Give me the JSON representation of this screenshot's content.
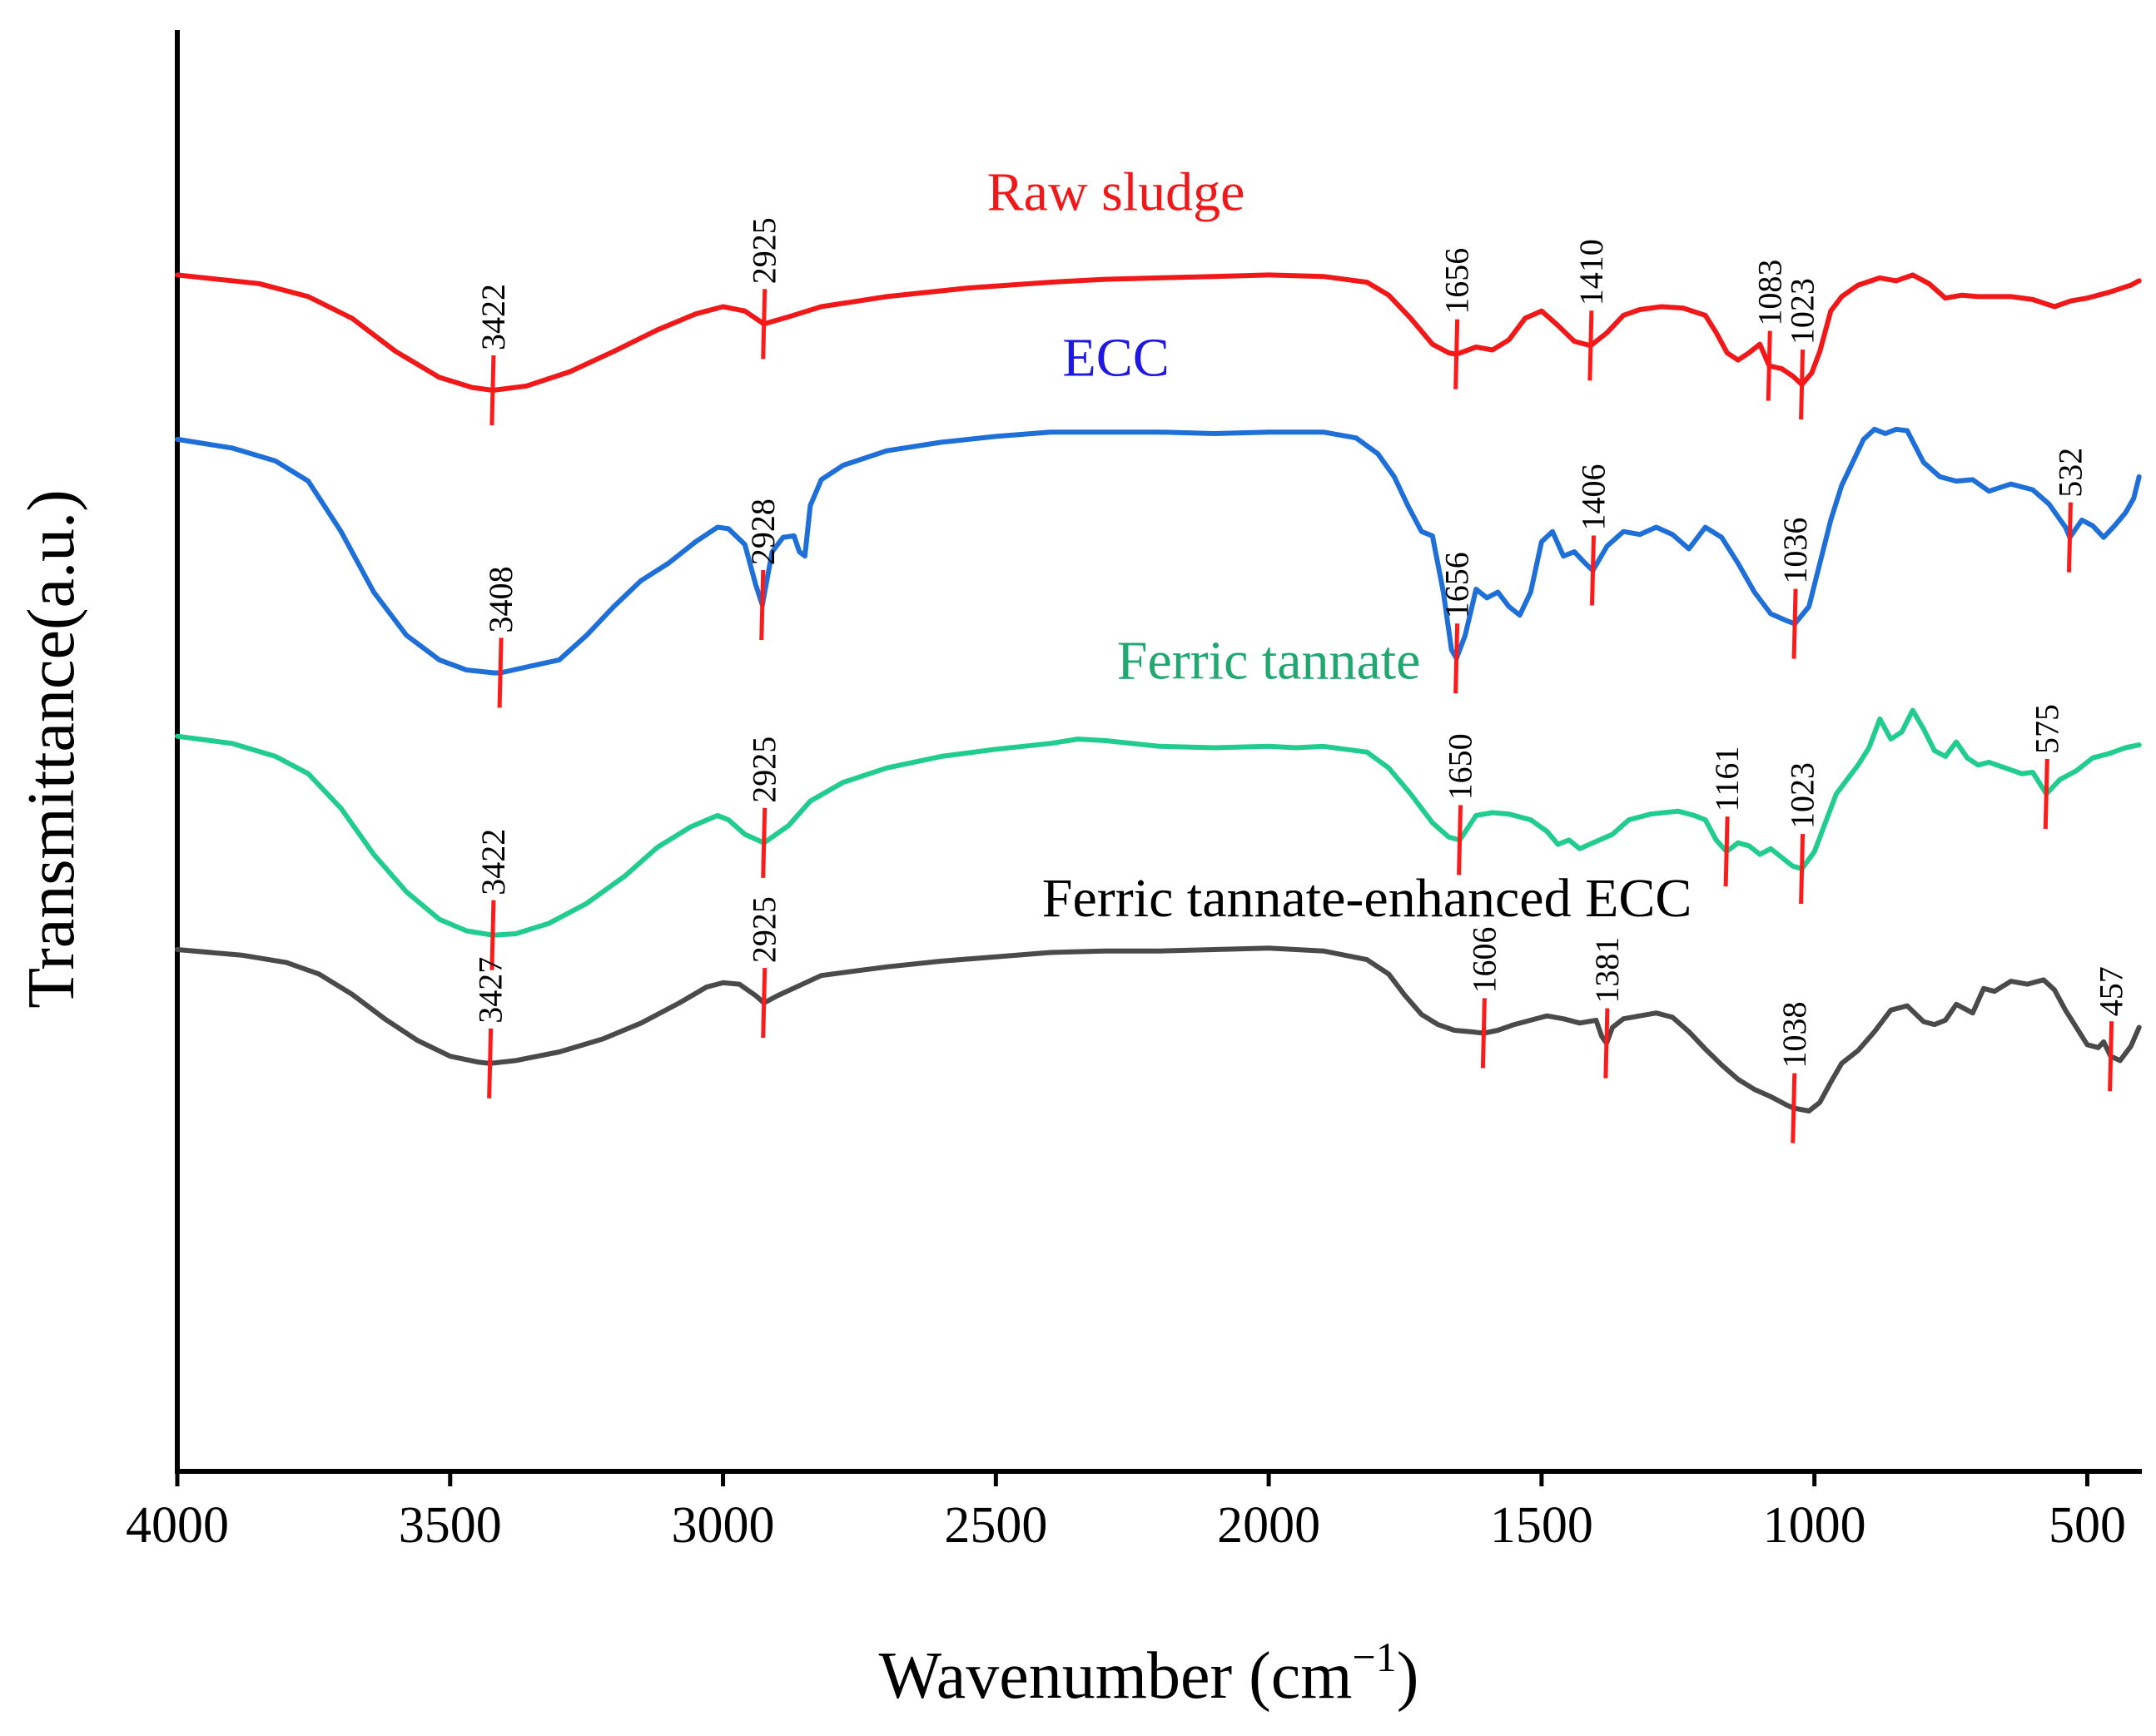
{
  "chart_data": {
    "type": "line",
    "title": "",
    "xlabel": "Wavenumber (cm",
    "xlabel_sup": "−1",
    "xlabel_close": ")",
    "ylabel": "Transmittance(a.u.)",
    "xlim": [
      4000,
      400
    ],
    "ylim": [
      0,
      100
    ],
    "x_ticks": [
      4000,
      3500,
      3000,
      2500,
      2000,
      1500,
      1000,
      500
    ],
    "x_tick_labels": [
      "4000",
      "3500",
      "3000",
      "2500",
      "2000",
      "1500",
      "1000",
      "500"
    ],
    "y_ticks_shown": false,
    "series": [
      {
        "name": "Raw sludge",
        "color": "#f01818",
        "x": [
          4000,
          3850,
          3760,
          3680,
          3600,
          3520,
          3460,
          3422,
          3360,
          3280,
          3200,
          3120,
          3050,
          3000,
          2960,
          2925,
          2880,
          2820,
          2700,
          2550,
          2400,
          2300,
          2200,
          2100,
          2000,
          1900,
          1820,
          1780,
          1740,
          1700,
          1670,
          1656,
          1620,
          1590,
          1560,
          1530,
          1500,
          1470,
          1440,
          1420,
          1410,
          1380,
          1350,
          1320,
          1280,
          1240,
          1200,
          1180,
          1160,
          1140,
          1120,
          1100,
          1083,
          1060,
          1040,
          1023,
          1005,
          990,
          970,
          950,
          920,
          880,
          850,
          820,
          790,
          760,
          730,
          700,
          670,
          640,
          600,
          560,
          530,
          500,
          460,
          420,
          405
        ],
        "y": [
          83.0,
          82.4,
          81.5,
          80.0,
          77.7,
          75.9,
          75.2,
          75.0,
          75.3,
          76.3,
          77.7,
          79.2,
          80.3,
          80.8,
          80.5,
          79.6,
          80.1,
          80.8,
          81.5,
          82.1,
          82.5,
          82.7,
          82.8,
          82.9,
          83.0,
          82.9,
          82.5,
          81.6,
          80.0,
          78.2,
          77.6,
          77.5,
          78.0,
          77.8,
          78.5,
          80.0,
          80.5,
          79.5,
          78.4,
          78.2,
          78.1,
          79.0,
          80.2,
          80.6,
          80.8,
          80.7,
          80.2,
          79.0,
          77.6,
          77.1,
          77.6,
          78.2,
          76.7,
          76.5,
          76.0,
          75.4,
          76.2,
          77.7,
          80.5,
          81.5,
          82.3,
          82.8,
          82.6,
          83.0,
          82.4,
          81.4,
          81.6,
          81.5,
          81.5,
          81.5,
          81.3,
          80.8,
          81.2,
          81.4,
          81.8,
          82.3,
          82.6
        ]
      },
      {
        "name": "ECC",
        "color": "#1e6fd8",
        "x": [
          4000,
          3900,
          3820,
          3760,
          3700,
          3640,
          3580,
          3520,
          3470,
          3420,
          3408,
          3360,
          3300,
          3250,
          3200,
          3150,
          3100,
          3050,
          3010,
          2990,
          2960,
          2940,
          2928,
          2910,
          2890,
          2870,
          2860,
          2850,
          2840,
          2820,
          2780,
          2700,
          2600,
          2500,
          2400,
          2300,
          2200,
          2100,
          2000,
          1900,
          1840,
          1800,
          1770,
          1745,
          1720,
          1700,
          1680,
          1665,
          1656,
          1640,
          1620,
          1600,
          1580,
          1560,
          1540,
          1520,
          1500,
          1480,
          1460,
          1440,
          1420,
          1406,
          1380,
          1350,
          1320,
          1290,
          1260,
          1230,
          1200,
          1170,
          1140,
          1110,
          1080,
          1050,
          1036,
          1010,
          990,
          970,
          950,
          930,
          910,
          890,
          870,
          850,
          830,
          800,
          770,
          740,
          710,
          680,
          640,
          600,
          570,
          540,
          532,
          510,
          490,
          470,
          450,
          430,
          415,
          405
        ],
        "y": [
          71.6,
          71.0,
          70.1,
          68.7,
          65.2,
          61.0,
          58.0,
          56.3,
          55.6,
          55.4,
          55.4,
          55.8,
          56.3,
          58.0,
          60.0,
          61.8,
          63.0,
          64.5,
          65.5,
          65.4,
          64.3,
          61.5,
          60.1,
          63.8,
          64.8,
          64.9,
          63.8,
          63.5,
          67.0,
          68.8,
          69.8,
          70.8,
          71.4,
          71.8,
          72.1,
          72.1,
          72.1,
          72.0,
          72.1,
          72.1,
          71.7,
          70.6,
          69.0,
          67.0,
          65.2,
          64.9,
          61.0,
          57.0,
          56.4,
          58.0,
          61.2,
          60.6,
          61.0,
          60.0,
          59.4,
          61.0,
          64.5,
          65.2,
          63.5,
          63.8,
          63.0,
          62.5,
          64.2,
          65.2,
          65.0,
          65.5,
          65.0,
          64.0,
          65.5,
          64.8,
          63.0,
          61.0,
          59.5,
          59.0,
          58.8,
          60.0,
          63.0,
          66.0,
          68.4,
          70.0,
          71.6,
          72.3,
          72.0,
          72.3,
          72.2,
          70.0,
          69.0,
          68.7,
          68.8,
          68.0,
          68.5,
          68.1,
          67.1,
          65.5,
          64.8,
          66.0,
          65.6,
          64.8,
          65.6,
          66.5,
          67.5,
          69.0
        ]
      },
      {
        "name": "Ferric tannate",
        "color": "#20cc8e",
        "x": [
          4000,
          3900,
          3820,
          3760,
          3700,
          3640,
          3580,
          3520,
          3470,
          3422,
          3380,
          3320,
          3250,
          3180,
          3120,
          3060,
          3010,
          2990,
          2960,
          2925,
          2880,
          2840,
          2780,
          2700,
          2600,
          2500,
          2400,
          2350,
          2300,
          2200,
          2100,
          2000,
          1950,
          1900,
          1820,
          1780,
          1740,
          1700,
          1670,
          1650,
          1620,
          1590,
          1560,
          1520,
          1490,
          1470,
          1450,
          1430,
          1400,
          1370,
          1340,
          1300,
          1250,
          1220,
          1200,
          1180,
          1161,
          1140,
          1120,
          1100,
          1080,
          1060,
          1040,
          1023,
          1000,
          980,
          960,
          940,
          920,
          900,
          880,
          860,
          840,
          820,
          800,
          780,
          760,
          740,
          720,
          700,
          680,
          650,
          620,
          600,
          575,
          550,
          520,
          490,
          460,
          430,
          405
        ],
        "y": [
          51.0,
          50.5,
          49.6,
          48.4,
          46.0,
          42.8,
          40.2,
          38.3,
          37.5,
          37.2,
          37.3,
          38.0,
          39.4,
          41.3,
          43.3,
          44.7,
          45.5,
          45.2,
          44.2,
          43.6,
          44.8,
          46.5,
          47.8,
          48.8,
          49.6,
          50.1,
          50.5,
          50.8,
          50.7,
          50.3,
          50.2,
          50.3,
          50.2,
          50.3,
          49.9,
          48.8,
          47.0,
          45.0,
          44.0,
          43.8,
          45.5,
          45.7,
          45.6,
          45.2,
          44.4,
          43.5,
          43.8,
          43.2,
          43.7,
          44.2,
          45.2,
          45.6,
          45.8,
          45.5,
          45.2,
          43.8,
          43.0,
          43.6,
          43.4,
          42.8,
          43.2,
          42.6,
          42.0,
          41.8,
          43.0,
          45.0,
          47.0,
          48.0,
          49.0,
          50.2,
          52.2,
          50.8,
          51.3,
          52.8,
          51.5,
          50.0,
          49.6,
          50.6,
          49.5,
          49.0,
          49.2,
          48.8,
          48.4,
          48.5,
          47.0,
          48.0,
          48.6,
          49.5,
          49.8,
          50.2,
          50.4
        ]
      },
      {
        "name": "Ferric tannate-enhanced ECC",
        "color": "#4a4a4a",
        "x": [
          4000,
          3880,
          3800,
          3740,
          3680,
          3620,
          3560,
          3500,
          3450,
          3427,
          3380,
          3300,
          3220,
          3150,
          3080,
          3030,
          3000,
          2970,
          2940,
          2925,
          2900,
          2860,
          2820,
          2780,
          2700,
          2600,
          2500,
          2400,
          2300,
          2200,
          2100,
          2000,
          1900,
          1820,
          1780,
          1750,
          1720,
          1690,
          1660,
          1630,
          1606,
          1580,
          1550,
          1520,
          1490,
          1460,
          1430,
          1400,
          1390,
          1381,
          1370,
          1350,
          1320,
          1290,
          1260,
          1230,
          1200,
          1170,
          1140,
          1110,
          1080,
          1050,
          1038,
          1010,
          990,
          970,
          950,
          920,
          890,
          860,
          830,
          800,
          780,
          760,
          740,
          710,
          690,
          670,
          640,
          610,
          580,
          560,
          540,
          520,
          500,
          480,
          470,
          457,
          440,
          420,
          405
        ],
        "y": [
          36.2,
          35.8,
          35.3,
          34.5,
          33.1,
          31.4,
          29.9,
          28.8,
          28.4,
          28.3,
          28.5,
          29.1,
          30.0,
          31.1,
          32.5,
          33.6,
          33.9,
          33.8,
          33.0,
          32.5,
          33.0,
          33.7,
          34.4,
          34.6,
          35.0,
          35.4,
          35.7,
          36.0,
          36.1,
          36.1,
          36.2,
          36.3,
          36.1,
          35.5,
          34.5,
          33.0,
          31.7,
          31.0,
          30.6,
          30.5,
          30.4,
          30.6,
          31.0,
          31.3,
          31.6,
          31.4,
          31.1,
          31.3,
          30.2,
          29.7,
          30.8,
          31.4,
          31.6,
          31.8,
          31.5,
          30.5,
          29.3,
          28.2,
          27.2,
          26.5,
          26.0,
          25.4,
          25.2,
          25.0,
          25.6,
          27.0,
          28.3,
          29.2,
          30.5,
          32.0,
          32.3,
          31.2,
          31.0,
          31.3,
          32.4,
          31.8,
          33.5,
          33.3,
          34.0,
          33.8,
          34.1,
          33.4,
          32.0,
          30.8,
          29.6,
          29.4,
          29.8,
          28.8,
          28.5,
          29.5,
          30.8
        ]
      }
    ],
    "series_labels": [
      {
        "text": "Raw sludge",
        "x": 2280,
        "y": 87.5,
        "color": "#f01818"
      },
      {
        "text": "ECC",
        "x": 2280,
        "y": 76.0,
        "color": "#1e18e0"
      },
      {
        "text": "Ferric tannate",
        "x": 2000,
        "y": 55.0,
        "color": "#20a870"
      },
      {
        "text": "Ferric tannate-enhanced ECC",
        "x": 1820,
        "y": 38.5,
        "color": "#000000"
      }
    ],
    "peak_labels": [
      {
        "text": "3422",
        "x": 3422,
        "y": 75.0
      },
      {
        "text": "2925",
        "x": 2925,
        "y": 79.6
      },
      {
        "text": "1656",
        "x": 1656,
        "y": 77.5
      },
      {
        "text": "1410",
        "x": 1410,
        "y": 78.1
      },
      {
        "text": "1083",
        "x": 1083,
        "y": 76.7
      },
      {
        "text": "1023",
        "x": 1023,
        "y": 75.4
      },
      {
        "text": "3408",
        "x": 3408,
        "y": 55.4
      },
      {
        "text": "2928",
        "x": 2928,
        "y": 60.1
      },
      {
        "text": "1656",
        "x": 1656,
        "y": 56.4
      },
      {
        "text": "1406",
        "x": 1406,
        "y": 62.5
      },
      {
        "text": "1036",
        "x": 1036,
        "y": 58.8
      },
      {
        "text": "532",
        "x": 532,
        "y": 64.8
      },
      {
        "text": "3422",
        "x": 3422,
        "y": 37.2
      },
      {
        "text": "2925",
        "x": 2925,
        "y": 43.6
      },
      {
        "text": "1650",
        "x": 1650,
        "y": 43.8
      },
      {
        "text": "1161",
        "x": 1161,
        "y": 43.0
      },
      {
        "text": "1023",
        "x": 1023,
        "y": 41.8
      },
      {
        "text": "575",
        "x": 575,
        "y": 47.0
      },
      {
        "text": "3427",
        "x": 3427,
        "y": 28.3
      },
      {
        "text": "2925",
        "x": 2925,
        "y": 32.5
      },
      {
        "text": "1606",
        "x": 1606,
        "y": 30.4
      },
      {
        "text": "1381",
        "x": 1381,
        "y": 29.7
      },
      {
        "text": "1038",
        "x": 1038,
        "y": 25.2
      },
      {
        "text": "457",
        "x": 457,
        "y": 28.8
      }
    ],
    "peak_marker_color": "#ff1a1a",
    "grid": false,
    "legend": "none"
  }
}
